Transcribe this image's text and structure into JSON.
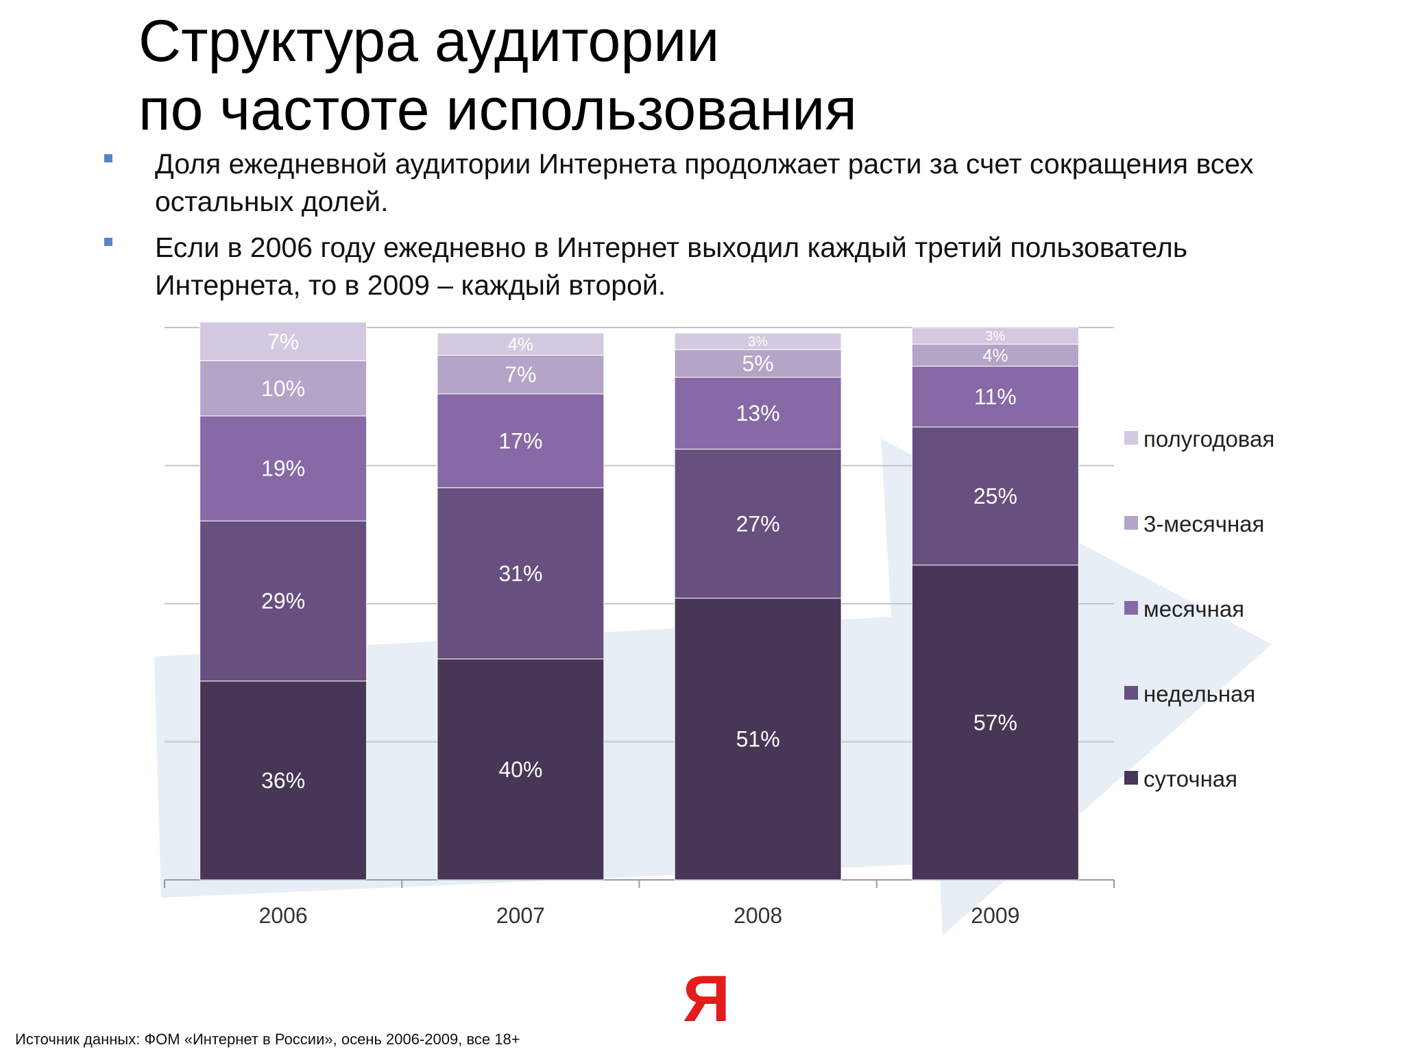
{
  "slide": {
    "title_line1": "Структура аудитории",
    "title_line2": "по частоте использования",
    "bullets": [
      "Доля ежедневной аудитории Интернета продолжает расти за счет сокращения всех остальных долей.",
      "Если в 2006 году ежедневно в Интернет выходил каждый третий пользователь Интернета, то в 2009 – каждый второй."
    ],
    "source": "Источник данных: ФОМ «Интернет в России», осень 2006-2009, все 18+",
    "logo": "Я"
  },
  "chart_data": {
    "type": "bar",
    "stacked": true,
    "categories": [
      "2006",
      "2007",
      "2008",
      "2009"
    ],
    "series": [
      {
        "name": "суточная",
        "values": [
          36,
          40,
          51,
          57
        ],
        "color": "#473656"
      },
      {
        "name": "недельная",
        "values": [
          29,
          31,
          27,
          25
        ],
        "color": "#67507f"
      },
      {
        "name": "месячная",
        "values": [
          19,
          17,
          13,
          11
        ],
        "color": "#8769a6"
      },
      {
        "name": "3-месячная",
        "values": [
          10,
          7,
          5,
          4
        ],
        "color": "#b3a4c8"
      },
      {
        "name": "полугодовая",
        "values": [
          7,
          4,
          3,
          3
        ],
        "color": "#d3c9e0"
      }
    ],
    "labels": [
      [
        "36%",
        "40%",
        "51%",
        "57%"
      ],
      [
        "29%",
        "31%",
        "27%",
        "25%"
      ],
      [
        "19%",
        "17%",
        "13%",
        "11%"
      ],
      [
        "10%",
        "7%",
        "5%",
        "4%"
      ],
      [
        "7%",
        "4%",
        "3%",
        "3%"
      ]
    ],
    "ylim": [
      0,
      100
    ],
    "grid": true,
    "legend": "right"
  }
}
